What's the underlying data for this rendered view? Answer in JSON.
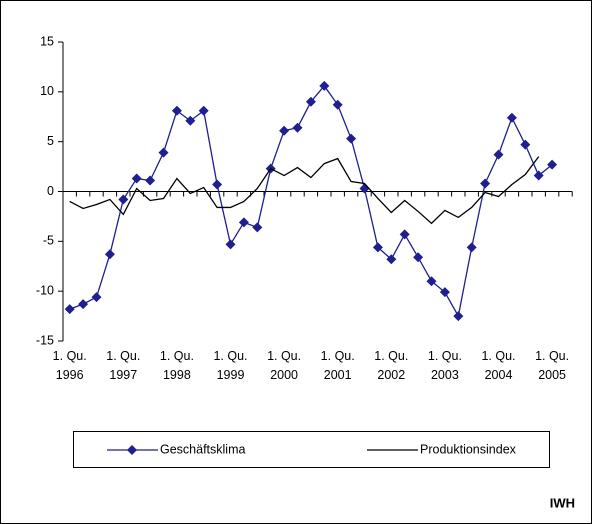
{
  "chart_data": {
    "type": "line",
    "categories": [
      "1. Qu. 1996",
      null,
      null,
      null,
      "1. Qu. 1997",
      null,
      null,
      null,
      "1. Qu. 1998",
      null,
      null,
      null,
      "1. Qu. 1999",
      null,
      null,
      null,
      "1. Qu. 2000",
      null,
      null,
      null,
      "1. Qu. 2001",
      null,
      null,
      null,
      "1. Qu. 2002",
      null,
      null,
      null,
      "1. Qu. 2003",
      null,
      null,
      null,
      "1. Qu. 2004",
      null,
      null,
      null,
      "1. Qu. 2005",
      null
    ],
    "series": [
      {
        "name": "Geschäftsklima",
        "color": "#1f1f8f",
        "marker": "diamond",
        "values": [
          -11.8,
          -11.3,
          -10.6,
          -6.3,
          -0.8,
          1.3,
          1.1,
          3.9,
          8.1,
          7.1,
          8.1,
          0.7,
          -5.3,
          -3.1,
          -3.6,
          2.3,
          6.1,
          6.4,
          9.0,
          10.6,
          8.7,
          5.3,
          0.3,
          -5.6,
          -6.8,
          -4.3,
          -6.6,
          -9.0,
          -10.1,
          -12.5,
          -5.6,
          0.8,
          3.7,
          7.4,
          4.7,
          1.6,
          2.7,
          null
        ]
      },
      {
        "name": "Produktionsindex",
        "color": "#000000",
        "marker": "none",
        "values": [
          -1.0,
          -1.7,
          -1.3,
          -0.8,
          -2.3,
          0.3,
          -0.9,
          -0.7,
          1.3,
          -0.2,
          0.4,
          -1.6,
          -1.6,
          -1.0,
          0.3,
          2.3,
          1.6,
          2.4,
          1.4,
          2.8,
          3.3,
          1.0,
          0.8,
          -0.7,
          -2.1,
          -0.9,
          -2.0,
          -3.2,
          -1.9,
          -2.6,
          -1.6,
          -0.1,
          -0.5,
          0.7,
          1.7,
          3.5,
          null,
          null
        ]
      }
    ],
    "ylim": [
      -15,
      15
    ],
    "yticks": [
      -15,
      -10,
      -5,
      0,
      5,
      10,
      15
    ],
    "grid": false,
    "legend": "bottom",
    "source": "IWH"
  }
}
